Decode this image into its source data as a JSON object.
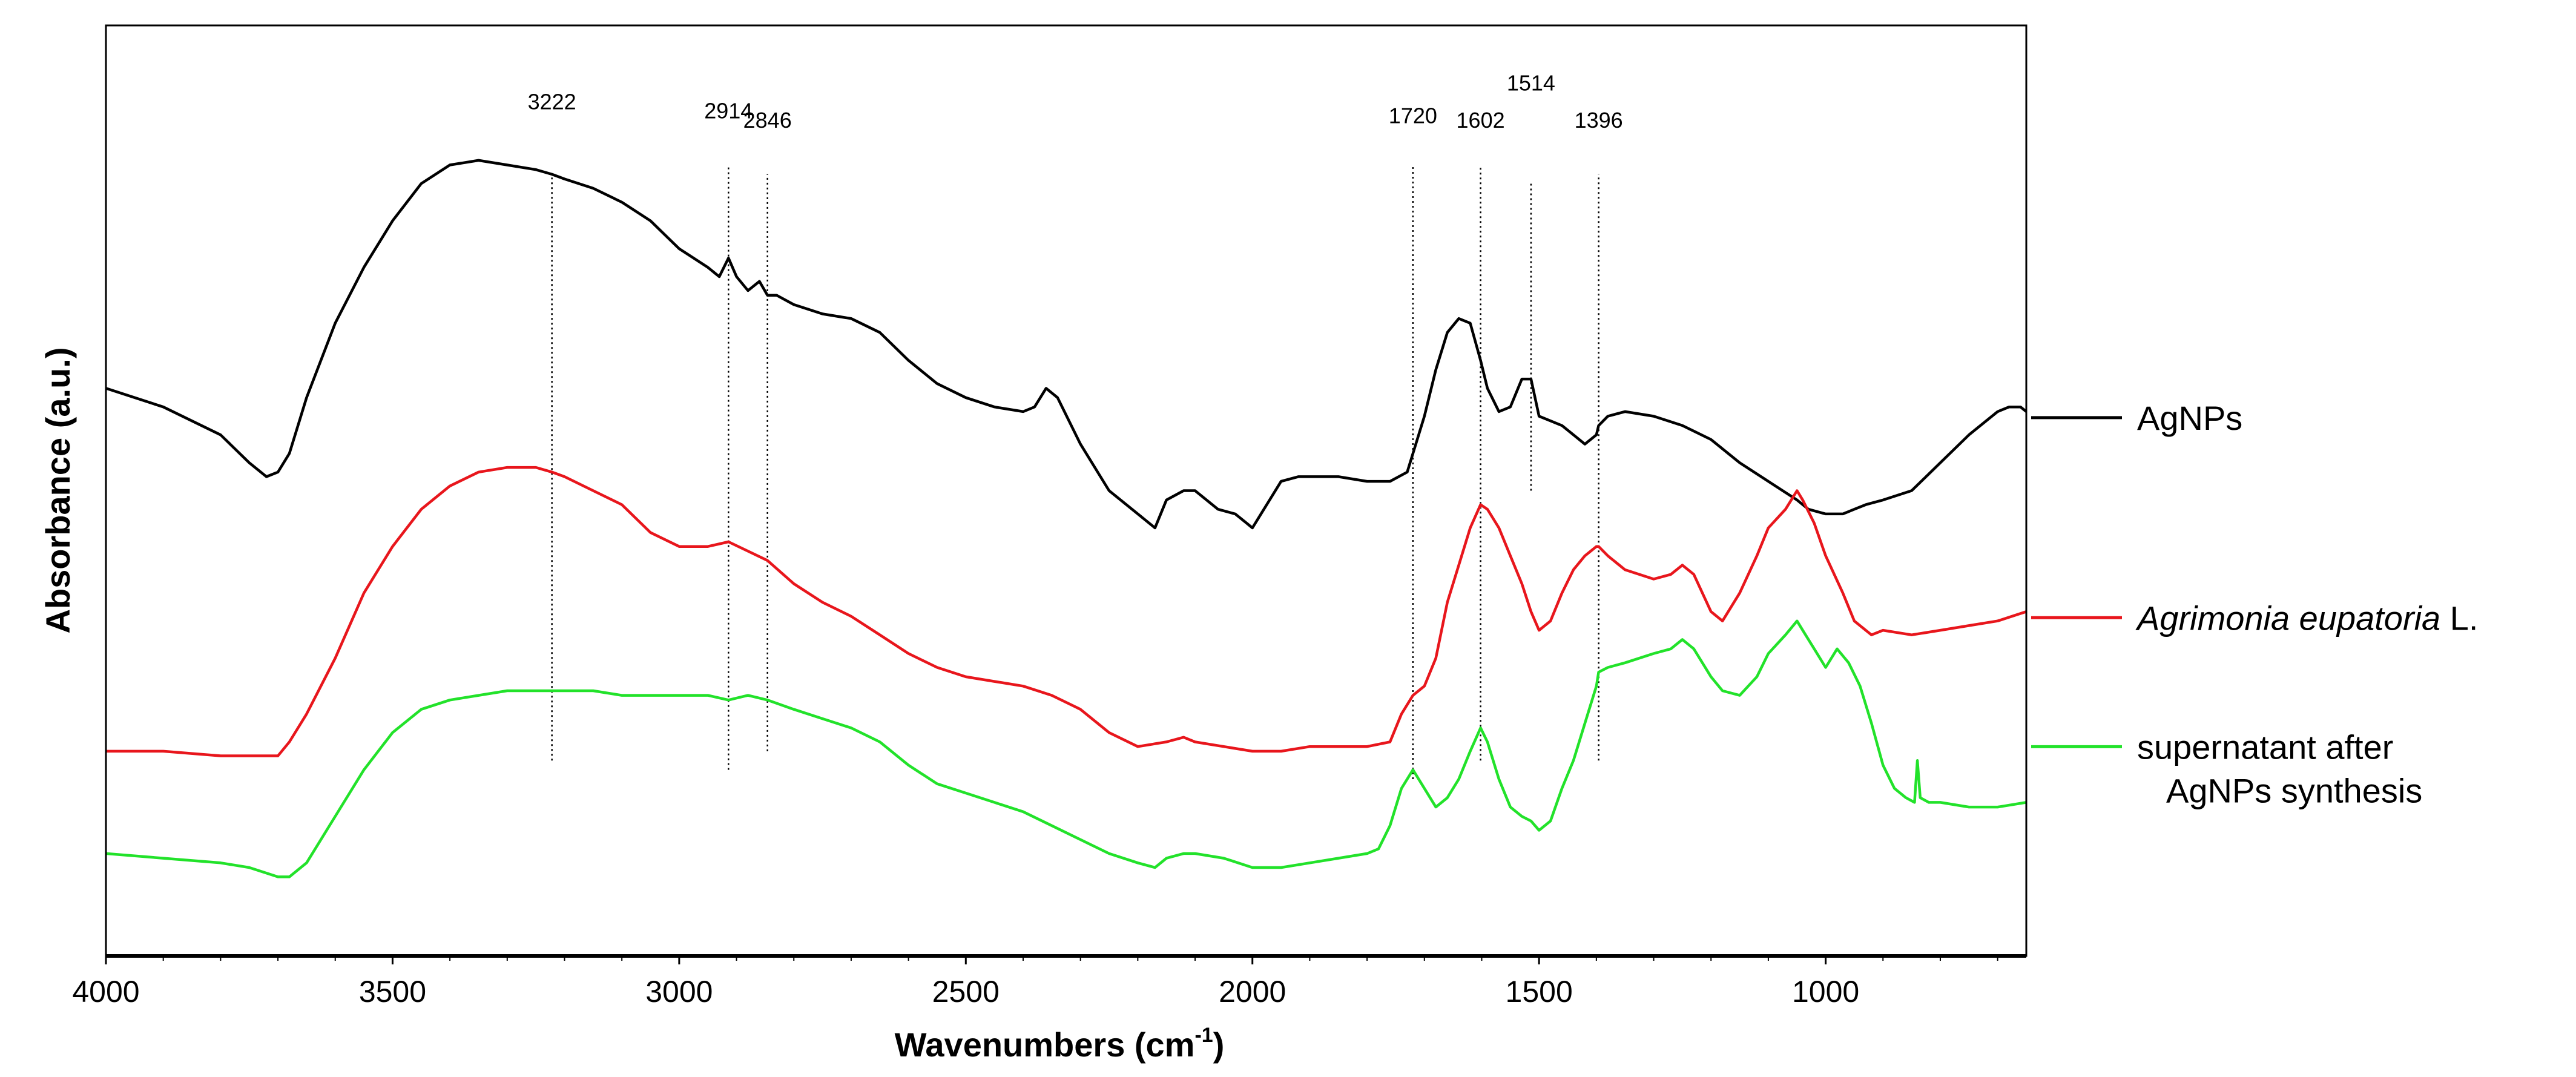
{
  "chart_data": {
    "type": "line",
    "xlabel": "Wavenumbers (cm",
    "xlabel_superscript": "-1",
    "xlabel_suffix": ")",
    "ylabel": "Absorbance (a.u.)",
    "xlim": [
      4000,
      650
    ],
    "ylim": [
      0,
      100
    ],
    "x_reversed": true,
    "y_ticks_shown": false,
    "grid": false,
    "legend_position": "right",
    "x_ticks": [
      {
        "value": 4000,
        "label": "4000"
      },
      {
        "value": 3500,
        "label": "3500"
      },
      {
        "value": 3000,
        "label": "3000"
      },
      {
        "value": 2500,
        "label": "2500"
      },
      {
        "value": 2000,
        "label": "2000"
      },
      {
        "value": 1500,
        "label": "1500"
      },
      {
        "value": 1000,
        "label": "1000"
      }
    ],
    "peak_markers": [
      {
        "x": 3222,
        "label": "3222",
        "y_from": 21,
        "y_to": 84,
        "label_y": 91
      },
      {
        "x": 2914,
        "label": "2914",
        "y_from": 20,
        "y_to": 85,
        "label_y": 90
      },
      {
        "x": 2846,
        "label": "2846",
        "y_from": 22,
        "y_to": 84,
        "label_y": 89
      },
      {
        "x": 1720,
        "label": "1720",
        "y_from": 19,
        "y_to": 85,
        "label_y": 89.5
      },
      {
        "x": 1602,
        "label": "1602",
        "y_from": 21,
        "y_to": 85,
        "label_y": 89
      },
      {
        "x": 1514,
        "label": "1514",
        "y_from": 50,
        "y_to": 83,
        "label_y": 93
      },
      {
        "x": 1396,
        "label": "1396",
        "y_from": 21,
        "y_to": 84,
        "label_y": 89
      }
    ],
    "series": [
      {
        "name": "AgNPs",
        "color": "#000000",
        "x": [
          4000,
          3900,
          3800,
          3750,
          3720,
          3700,
          3680,
          3650,
          3600,
          3550,
          3500,
          3450,
          3400,
          3350,
          3300,
          3250,
          3222,
          3200,
          3150,
          3100,
          3050,
          3000,
          2950,
          2930,
          2914,
          2900,
          2880,
          2860,
          2846,
          2830,
          2800,
          2750,
          2700,
          2650,
          2600,
          2550,
          2500,
          2450,
          2400,
          2380,
          2360,
          2340,
          2300,
          2250,
          2200,
          2170,
          2150,
          2120,
          2100,
          2060,
          2030,
          2010,
          2000,
          1990,
          1970,
          1950,
          1920,
          1900,
          1850,
          1800,
          1760,
          1730,
          1720,
          1700,
          1680,
          1660,
          1640,
          1620,
          1602,
          1590,
          1570,
          1550,
          1530,
          1514,
          1500,
          1480,
          1460,
          1440,
          1420,
          1400,
          1396,
          1380,
          1350,
          1300,
          1250,
          1200,
          1150,
          1100,
          1050,
          1030,
          1000,
          970,
          950,
          930,
          900,
          850,
          800,
          750,
          700,
          680,
          660,
          650
        ],
        "y": [
          61,
          59,
          56,
          53,
          51.5,
          52,
          54,
          60,
          68,
          74,
          79,
          83,
          85,
          85.5,
          85,
          84.5,
          84,
          83.5,
          82.5,
          81,
          79,
          76,
          74,
          73,
          75,
          73,
          71.5,
          72.5,
          71,
          71,
          70,
          69,
          68.5,
          67,
          64,
          61.5,
          60,
          59,
          58.5,
          59,
          61,
          60,
          55,
          50,
          47.5,
          46,
          49,
          50,
          50,
          48,
          47.5,
          46.5,
          46,
          47,
          49,
          51,
          51.5,
          51.5,
          51.5,
          51,
          51,
          52,
          54,
          58,
          63,
          67,
          68.5,
          68,
          64,
          61,
          58.5,
          59,
          62,
          62,
          58,
          57.5,
          57,
          56,
          55,
          56,
          57,
          58,
          58.5,
          58,
          57,
          55.5,
          53,
          51,
          49,
          48,
          47.5,
          47.5,
          48,
          48.5,
          49,
          50,
          53,
          56,
          58.5,
          59,
          59,
          58.5
        ]
      },
      {
        "name": "Agrimonia eupatoria L.",
        "name_italic": "Agrimonia eupatoria",
        "name_suffix": " L.",
        "color": "#e8161c",
        "x": [
          4000,
          3900,
          3800,
          3750,
          3700,
          3680,
          3650,
          3600,
          3550,
          3500,
          3450,
          3400,
          3350,
          3300,
          3250,
          3222,
          3200,
          3150,
          3100,
          3050,
          3000,
          2950,
          2914,
          2880,
          2846,
          2800,
          2750,
          2700,
          2650,
          2600,
          2550,
          2500,
          2450,
          2400,
          2350,
          2300,
          2250,
          2200,
          2150,
          2120,
          2100,
          2050,
          2000,
          1950,
          1900,
          1850,
          1800,
          1760,
          1740,
          1720,
          1700,
          1680,
          1660,
          1640,
          1620,
          1602,
          1590,
          1570,
          1550,
          1530,
          1514,
          1500,
          1480,
          1460,
          1440,
          1420,
          1400,
          1396,
          1380,
          1350,
          1300,
          1270,
          1250,
          1230,
          1200,
          1180,
          1150,
          1120,
          1100,
          1070,
          1050,
          1040,
          1020,
          1000,
          970,
          950,
          920,
          900,
          850,
          800,
          750,
          700,
          650
        ],
        "y": [
          22,
          22,
          21.5,
          21.5,
          21.5,
          23,
          26,
          32,
          39,
          44,
          48,
          50.5,
          52,
          52.5,
          52.5,
          52,
          51.5,
          50,
          48.5,
          45.5,
          44,
          44,
          44.5,
          43.5,
          42.5,
          40,
          38,
          36.5,
          34.5,
          32.5,
          31,
          30,
          29.5,
          29,
          28,
          26.5,
          24,
          22.5,
          23,
          23.5,
          23,
          22.5,
          22,
          22,
          22.5,
          22.5,
          22.5,
          23,
          26,
          28,
          29,
          32,
          38,
          42,
          46,
          48.5,
          48,
          46,
          43,
          40,
          37,
          35,
          36,
          39,
          41.5,
          43,
          44,
          44,
          43,
          41.5,
          40.5,
          41,
          42,
          41,
          37,
          36,
          39,
          43,
          46,
          48,
          50,
          49,
          46.5,
          43,
          39,
          36,
          34.5,
          35,
          34.5,
          35,
          35.5,
          36,
          37
        ]
      },
      {
        "name": "supernatant after AgNPs synthesis",
        "name_line1": "supernatant after",
        "name_line2": "AgNPs synthesis",
        "color": "#22e22a",
        "x": [
          4000,
          3900,
          3800,
          3750,
          3700,
          3680,
          3650,
          3600,
          3550,
          3500,
          3450,
          3400,
          3350,
          3300,
          3250,
          3222,
          3200,
          3150,
          3100,
          3050,
          3000,
          2950,
          2914,
          2880,
          2846,
          2800,
          2750,
          2700,
          2650,
          2600,
          2550,
          2500,
          2450,
          2400,
          2350,
          2300,
          2250,
          2200,
          2170,
          2150,
          2120,
          2100,
          2050,
          2000,
          1950,
          1900,
          1850,
          1800,
          1780,
          1760,
          1740,
          1720,
          1700,
          1680,
          1660,
          1640,
          1620,
          1602,
          1590,
          1570,
          1550,
          1530,
          1514,
          1500,
          1480,
          1460,
          1440,
          1420,
          1400,
          1396,
          1380,
          1350,
          1300,
          1270,
          1250,
          1230,
          1200,
          1180,
          1150,
          1120,
          1100,
          1070,
          1050,
          1040,
          1020,
          1000,
          980,
          960,
          940,
          920,
          900,
          880,
          860,
          845,
          840,
          835,
          820,
          800,
          750,
          700,
          650
        ],
        "y": [
          11,
          10.5,
          10,
          9.5,
          8.5,
          8.5,
          10,
          15,
          20,
          24,
          26.5,
          27.5,
          28,
          28.5,
          28.5,
          28.5,
          28.5,
          28.5,
          28,
          28,
          28,
          28,
          27.5,
          28,
          27.5,
          26.5,
          25.5,
          24.5,
          23,
          20.5,
          18.5,
          17.5,
          16.5,
          15.5,
          14,
          12.5,
          11,
          10,
          9.5,
          10.5,
          11,
          11,
          10.5,
          9.5,
          9.5,
          10,
          10.5,
          11,
          11.5,
          14,
          18,
          20,
          18,
          16,
          17,
          19,
          22,
          24.5,
          23,
          19,
          16,
          15,
          14.5,
          13.5,
          14.5,
          18,
          21,
          25,
          29,
          30.5,
          31,
          31.5,
          32.5,
          33,
          34,
          33,
          30,
          28.5,
          28,
          30,
          32.5,
          34.5,
          36,
          35,
          33,
          31,
          33,
          31.5,
          29,
          25,
          20.5,
          18,
          17,
          16.5,
          21,
          17,
          16.5,
          16.5,
          16,
          16,
          16.5
        ]
      }
    ]
  }
}
